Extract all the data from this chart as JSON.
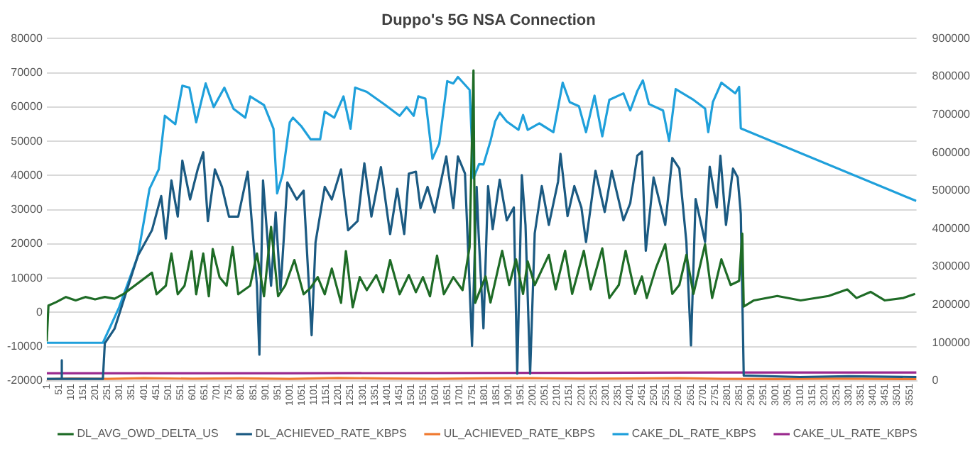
{
  "chart_data": {
    "type": "line",
    "title": "Duppo's 5G NSA Connection",
    "legend": "bottom",
    "grid": "y",
    "marker": "none",
    "line_style": "solid",
    "xlim": [
      1,
      3580
    ],
    "xticks": [
      1,
      51,
      101,
      151,
      201,
      251,
      301,
      351,
      401,
      451,
      501,
      551,
      601,
      651,
      701,
      751,
      801,
      851,
      901,
      951,
      1001,
      1051,
      1101,
      1151,
      1201,
      1251,
      1301,
      1351,
      1401,
      1451,
      1501,
      1551,
      1601,
      1651,
      1701,
      1751,
      1801,
      1851,
      1901,
      1951,
      2001,
      2051,
      2101,
      2151,
      2201,
      2251,
      2301,
      2351,
      2401,
      2451,
      2501,
      2551,
      2601,
      2651,
      2701,
      2751,
      2801,
      2851,
      2901,
      2951,
      3001,
      3051,
      3101,
      3151,
      3201,
      3251,
      3301,
      3351,
      3401,
      3451,
      3501,
      3551
    ],
    "ylim": [
      -20000,
      80000
    ],
    "yticks": [
      -20000,
      -10000,
      0,
      10000,
      20000,
      30000,
      40000,
      50000,
      60000,
      70000,
      80000
    ],
    "y2lim": [
      0,
      900000
    ],
    "y2ticks": [
      0,
      100000,
      200000,
      300000,
      400000,
      500000,
      600000,
      700000,
      800000,
      900000
    ],
    "series": [
      {
        "name": "DL_AVG_OWD_DELTA_US",
        "color": "#1e6b26",
        "x": [
          1,
          8,
          40,
          80,
          120,
          160,
          200,
          240,
          280,
          320,
          434,
          453,
          491,
          514,
          540,
          568,
          597,
          616,
          645,
          668,
          684,
          712,
          741,
          766,
          789,
          838,
          866,
          895,
          924,
          953,
          982,
          1020,
          1058,
          1087,
          1116,
          1145,
          1174,
          1212,
          1232,
          1260,
          1289,
          1318,
          1357,
          1385,
          1414,
          1453,
          1491,
          1520,
          1549,
          1578,
          1607,
          1635,
          1674,
          1712,
          1741,
          1757,
          1764,
          1778,
          1807,
          1827,
          1875,
          1904,
          1932,
          1961,
          1980,
          2009,
          2067,
          2095,
          2134,
          2163,
          2211,
          2239,
          2287,
          2316,
          2355,
          2383,
          2422,
          2450,
          2470,
          2508,
          2546,
          2575,
          2604,
          2633,
          2662,
          2710,
          2739,
          2777,
          2815,
          2850,
          2863,
          2869,
          2911,
          3007,
          3103,
          3218,
          3295,
          3333,
          3391,
          3449,
          3526,
          3574
        ],
        "values": [
          -8500,
          2000,
          3000,
          4500,
          3500,
          4500,
          3800,
          4500,
          4000,
          5500,
          11600,
          5300,
          7800,
          17200,
          5300,
          7800,
          17900,
          5300,
          17200,
          4700,
          18500,
          10300,
          7800,
          19100,
          5300,
          7800,
          17200,
          4700,
          25000,
          4700,
          7800,
          15300,
          5300,
          7200,
          10300,
          5300,
          12800,
          2800,
          17900,
          1500,
          10300,
          6500,
          10900,
          5900,
          15300,
          5300,
          10900,
          5900,
          10300,
          4700,
          16600,
          5300,
          10300,
          6500,
          19100,
          70700,
          2800,
          5400,
          10500,
          2900,
          18000,
          8000,
          15500,
          5400,
          14900,
          8000,
          16800,
          6700,
          18000,
          5400,
          18000,
          6700,
          18700,
          4200,
          8000,
          18000,
          5400,
          10500,
          4200,
          13000,
          19900,
          5400,
          8000,
          16800,
          5400,
          19900,
          4200,
          15500,
          8000,
          9200,
          23000,
          1700,
          3500,
          4800,
          3500,
          4800,
          6700,
          4200,
          6000,
          3500,
          4200,
          5400
        ]
      },
      {
        "name": "DL_ACHIEVED_RATE_KBPS",
        "color": "#1b5a82",
        "axis": "y2",
        "x": [
          1,
          60,
          62,
          64,
          232,
          240,
          280,
          376,
          434,
          472,
          491,
          514,
          540,
          559,
          591,
          622,
          645,
          664,
          693,
          722,
          751,
          789,
          828,
          866,
          876,
          891,
          924,
          943,
          963,
          991,
          1030,
          1058,
          1091,
          1107,
          1145,
          1174,
          1212,
          1241,
          1280,
          1308,
          1337,
          1376,
          1414,
          1443,
          1472,
          1491,
          1520,
          1539,
          1568,
          1597,
          1626,
          1645,
          1674,
          1693,
          1722,
          1751,
          1770,
          1778,
          1798,
          1817,
          1836,
          1865,
          1894,
          1923,
          1937,
          1956,
          1971,
          1990,
          2009,
          2038,
          2067,
          2105,
          2115,
          2144,
          2172,
          2201,
          2220,
          2259,
          2297,
          2326,
          2374,
          2402,
          2431,
          2450,
          2466,
          2498,
          2546,
          2575,
          2604,
          2633,
          2652,
          2671,
          2710,
          2729,
          2758,
          2773,
          2796,
          2825,
          2844,
          2857,
          2869,
          3100,
          3300,
          3580
        ],
        "values": [
          5000,
          5000,
          54000,
          5000,
          5000,
          99000,
          137000,
          329000,
          396000,
          486000,
          374000,
          527000,
          432000,
          579000,
          477000,
          556000,
          601000,
          420000,
          556000,
          510000,
          432000,
          432000,
          550000,
          250000,
          69000,
          527000,
          250000,
          443000,
          239000,
          522000,
          477000,
          500000,
          120000,
          364000,
          510000,
          477000,
          556000,
          396000,
          420000,
          572000,
          432000,
          562000,
          386000,
          505000,
          386000,
          545000,
          550000,
          454000,
          510000,
          443000,
          533000,
          590000,
          454000,
          590000,
          545000,
          92000,
          510000,
          388000,
          138000,
          512000,
          399000,
          529000,
          422000,
          456000,
          19000,
          541000,
          410000,
          19000,
          388000,
          512000,
          410000,
          524000,
          597000,
          433000,
          512000,
          456000,
          365000,
          552000,
          444000,
          552000,
          422000,
          467000,
          592000,
          603000,
          342000,
          535000,
          410000,
          586000,
          558000,
          365000,
          93000,
          478000,
          365000,
          563000,
          456000,
          592000,
          410000,
          558000,
          535000,
          439000,
          14000,
          10000,
          12000,
          10000
        ]
      },
      {
        "name": "UL_ACHIEVED_RATE_KBPS",
        "color": "#f07a30",
        "axis": "y2",
        "x": [
          1,
          100,
          250,
          400,
          600,
          800,
          1000,
          1200,
          1400,
          1600,
          1800,
          2000,
          2200,
          2400,
          2600,
          2800,
          3000,
          3200,
          3400,
          3580
        ],
        "values": [
          4000,
          6000,
          5000,
          7000,
          5500,
          6500,
          5000,
          7500,
          6000,
          5000,
          6500,
          7000,
          5500,
          6000,
          7000,
          5000,
          4500,
          5500,
          5000,
          4500
        ]
      },
      {
        "name": "CAKE_DL_RATE_KBPS",
        "color": "#1fa0db",
        "axis": "y2",
        "x": [
          1,
          232,
          299,
          376,
          424,
          462,
          487,
          530,
          559,
          588,
          616,
          655,
          688,
          732,
          770,
          818,
          838,
          895,
          934,
          949,
          972,
          1001,
          1014,
          1049,
          1087,
          1126,
          1145,
          1184,
          1222,
          1251,
          1270,
          1318,
          1395,
          1453,
          1482,
          1511,
          1530,
          1559,
          1588,
          1616,
          1649,
          1674,
          1693,
          1741,
          1757,
          1780,
          1798,
          1827,
          1846,
          1865,
          1894,
          1942,
          1961,
          1980,
          2028,
          2086,
          2124,
          2153,
          2191,
          2220,
          2255,
          2287,
          2316,
          2374,
          2402,
          2431,
          2454,
          2479,
          2537,
          2562,
          2589,
          2662,
          2710,
          2723,
          2742,
          2777,
          2834,
          2850,
          2857,
          3579
        ],
        "values": [
          100000,
          100000,
          193500,
          329000,
          505000,
          556000,
          697000,
          675000,
          776000,
          771000,
          680000,
          782000,
          720000,
          771000,
          715000,
          692000,
          748000,
          725000,
          663000,
          493000,
          544000,
          680000,
          692000,
          669000,
          635000,
          635000,
          708000,
          692000,
          748000,
          663000,
          771000,
          760000,
          725000,
          697000,
          720000,
          697000,
          748000,
          742000,
          584000,
          624000,
          788000,
          782000,
          799000,
          765000,
          533000,
          570000,
          569000,
          631000,
          682000,
          705000,
          682000,
          660000,
          699000,
          660000,
          677000,
          654000,
          784000,
          733000,
          722000,
          654000,
          750000,
          643000,
          739000,
          756000,
          711000,
          762000,
          790000,
          728000,
          711000,
          631000,
          767000,
          739000,
          716000,
          654000,
          733000,
          784000,
          756000,
          773000,
          664000,
          473000
        ]
      },
      {
        "name": "CAKE_UL_RATE_KBPS",
        "color": "#9b2a8e",
        "axis": "y2",
        "x": [
          1,
          1000,
          2000,
          2900,
          3580
        ],
        "values": [
          20000,
          20000,
          21000,
          22000,
          22000
        ]
      }
    ]
  }
}
